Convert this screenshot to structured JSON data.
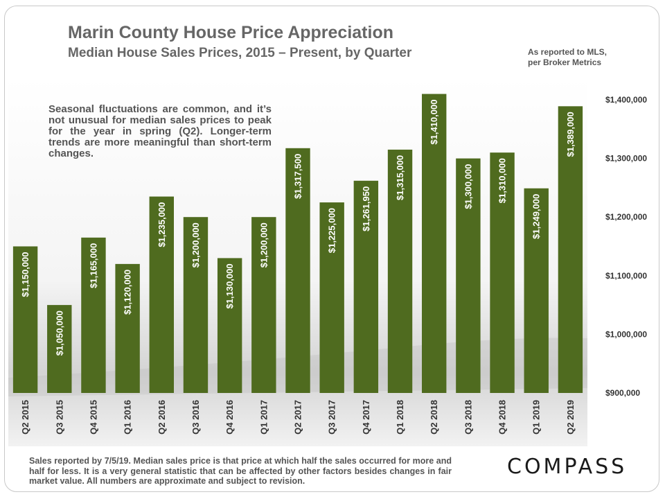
{
  "header": {
    "title": "Marin County House Price Appreciation",
    "subtitle": "Median House Sales Prices, 2015 – Present, by Quarter"
  },
  "source_note": [
    "As reported to MLS,",
    "per Broker Metrics"
  ],
  "annotation": "Seasonal fluctuations are common, and it’s not unusual for median sales prices to peak for the year in spring (Q2). Longer-term trends are more meaningful than short-term changes.",
  "footnote": "Sales reported by 7/5/19. Median sales price is that price at which half the sales occurred for more and half for less. It is a very general statistic that can be affected by other factors besides changes in fair market value. All numbers are approximate and subject to revision.",
  "logo": {
    "text": "COMPASS"
  },
  "colors": {
    "bar": "#4f6b1f",
    "label": "#ffffff",
    "text": "#555555",
    "axis": "#333333"
  },
  "chart_data": {
    "type": "bar",
    "title": "Marin County House Price Appreciation",
    "subtitle": "Median House Sales Prices, 2015 – Present, by Quarter",
    "categories": [
      "Q2 2015",
      "Q3 2015",
      "Q4 2015",
      "Q1 2016",
      "Q2 2016",
      "Q3 2016",
      "Q4 2016",
      "Q1 2017",
      "Q2 2017",
      "Q3 2017",
      "Q4 2017",
      "Q1 2018",
      "Q2 2018",
      "Q3 2018",
      "Q4 2018",
      "Q1 2019",
      "Q2 2019"
    ],
    "values": [
      1150000,
      1050000,
      1165000,
      1120000,
      1235000,
      1200000,
      1130000,
      1200000,
      1317500,
      1225000,
      1261950,
      1315000,
      1410000,
      1300000,
      1310000,
      1249000,
      1389000
    ],
    "data_labels": [
      "$1,150,000",
      "$1,050,000",
      "$1,165,000",
      "$1,120,000",
      "$1,235,000",
      "$1,200,000",
      "$1,130,000",
      "$1,200,000",
      "$1,317,500",
      "$1,225,000",
      "$1,261,950",
      "$1,315,000",
      "$1,410,000",
      "$1,300,000",
      "$1,310,000",
      "$1,249,000",
      "$1,389,000"
    ],
    "ylim": [
      900000,
      1400000
    ],
    "yticks": [
      900000,
      1000000,
      1100000,
      1200000,
      1300000,
      1400000
    ],
    "ytick_labels": [
      "$900,000",
      "$1,000,000",
      "$1,100,000",
      "$1,200,000",
      "$1,300,000",
      "$1,400,000"
    ],
    "y_axis_side": "right",
    "grid": false,
    "xlabel": "",
    "ylabel": ""
  }
}
